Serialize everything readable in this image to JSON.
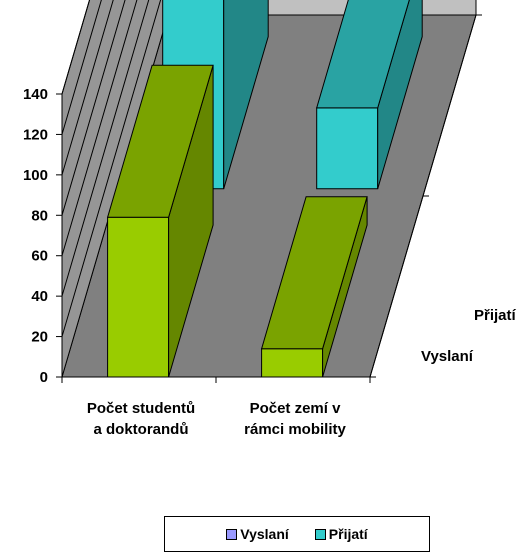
{
  "chart_data": {
    "type": "bar",
    "subtype": "3d-column",
    "categories": [
      "Počet studentů a doktorandů",
      "Počet zemí v rámci mobility"
    ],
    "category_lines": [
      [
        "Počet studentů",
        "a doktorandů"
      ],
      [
        "Počet zemí v",
        "rámci mobility"
      ]
    ],
    "series": [
      {
        "name": "Vyslaní",
        "values": [
          79,
          14
        ],
        "color": "#99cc00"
      },
      {
        "name": "Přijatí",
        "values": [
          147,
          40
        ],
        "color": "#33cccc"
      }
    ],
    "depth_labels": [
      "Vyslaní",
      "Přijatí"
    ],
    "yticks": [
      0,
      20,
      40,
      60,
      80,
      100,
      120,
      140
    ],
    "ylim": [
      0,
      140
    ],
    "grid": true,
    "legend_position": "bottom"
  }
}
